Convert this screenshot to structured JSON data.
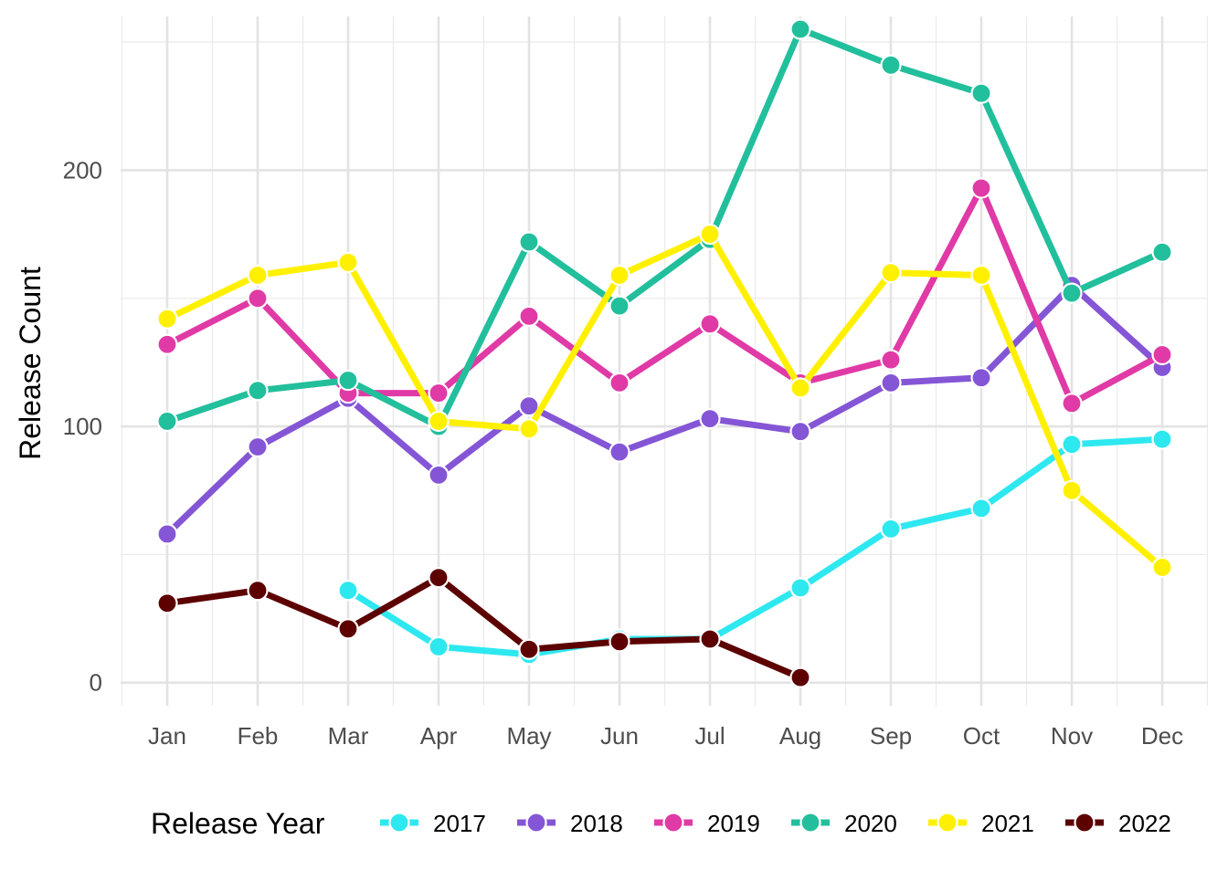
{
  "chart_data": {
    "type": "line",
    "title": "",
    "xlabel": "",
    "ylabel": "Release Count",
    "categories": [
      "Jan",
      "Feb",
      "Mar",
      "Apr",
      "May",
      "Jun",
      "Jul",
      "Aug",
      "Sep",
      "Oct",
      "Nov",
      "Dec"
    ],
    "y_ticks": [
      0,
      100,
      200
    ],
    "ylim": [
      -9,
      260
    ],
    "grid": true,
    "legend": {
      "title": "Release Year",
      "position": "bottom"
    },
    "series": [
      {
        "name": "2017",
        "color": "#2ee8f0",
        "values": [
          null,
          null,
          36,
          14,
          11,
          17,
          17,
          37,
          60,
          68,
          93,
          95
        ]
      },
      {
        "name": "2018",
        "color": "#8456d6",
        "values": [
          58,
          92,
          111,
          81,
          108,
          90,
          103,
          98,
          117,
          119,
          155,
          123
        ]
      },
      {
        "name": "2019",
        "color": "#e03aa6",
        "values": [
          132,
          150,
          113,
          113,
          143,
          117,
          140,
          117,
          126,
          193,
          109,
          128
        ]
      },
      {
        "name": "2020",
        "color": "#22bf9c",
        "values": [
          102,
          114,
          118,
          100,
          172,
          147,
          173,
          255,
          241,
          230,
          152,
          168
        ]
      },
      {
        "name": "2021",
        "color": "#fff000",
        "values": [
          142,
          159,
          164,
          102,
          99,
          159,
          175,
          115,
          160,
          159,
          75,
          45
        ]
      },
      {
        "name": "2022",
        "color": "#5c0000",
        "values": [
          31,
          36,
          21,
          41,
          13,
          16,
          17,
          2,
          null,
          null,
          null,
          null
        ]
      }
    ]
  }
}
